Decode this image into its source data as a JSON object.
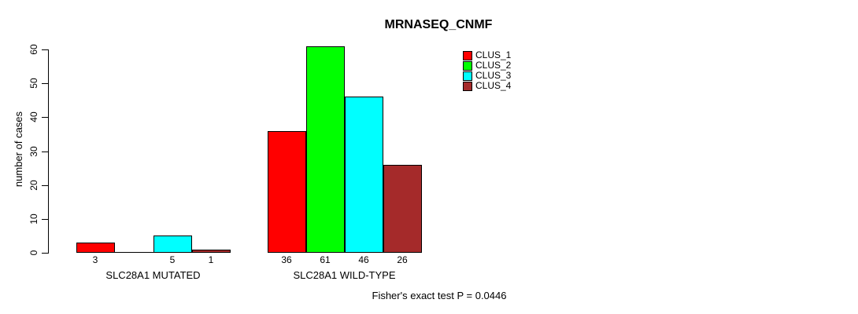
{
  "chart_data": {
    "type": "bar",
    "title": "MRNASEQ_CNMF",
    "xlabel": "",
    "ylabel": "number of cases",
    "ylim": [
      0,
      60
    ],
    "y_ticks": [
      0,
      10,
      20,
      30,
      40,
      50,
      60
    ],
    "grid": false,
    "legend_position": "top-right",
    "categories": [
      "SLC28A1 MUTATED",
      "SLC28A1 WILD-TYPE"
    ],
    "series": [
      {
        "name": "CLUS_1",
        "color": "#FF0000",
        "values": [
          3,
          36
        ]
      },
      {
        "name": "CLUS_2",
        "color": "#00FF00",
        "values": [
          0,
          61
        ]
      },
      {
        "name": "CLUS_3",
        "color": "#00FFFF",
        "values": [
          5,
          46
        ]
      },
      {
        "name": "CLUS_4",
        "color": "#A52A2A",
        "values": [
          1,
          26
        ]
      }
    ],
    "bar_value_labels": [
      [
        "3",
        "",
        "5",
        "1"
      ],
      [
        "36",
        "61",
        "46",
        "26"
      ]
    ],
    "annotation": "Fisher's exact test P = 0.0446"
  }
}
